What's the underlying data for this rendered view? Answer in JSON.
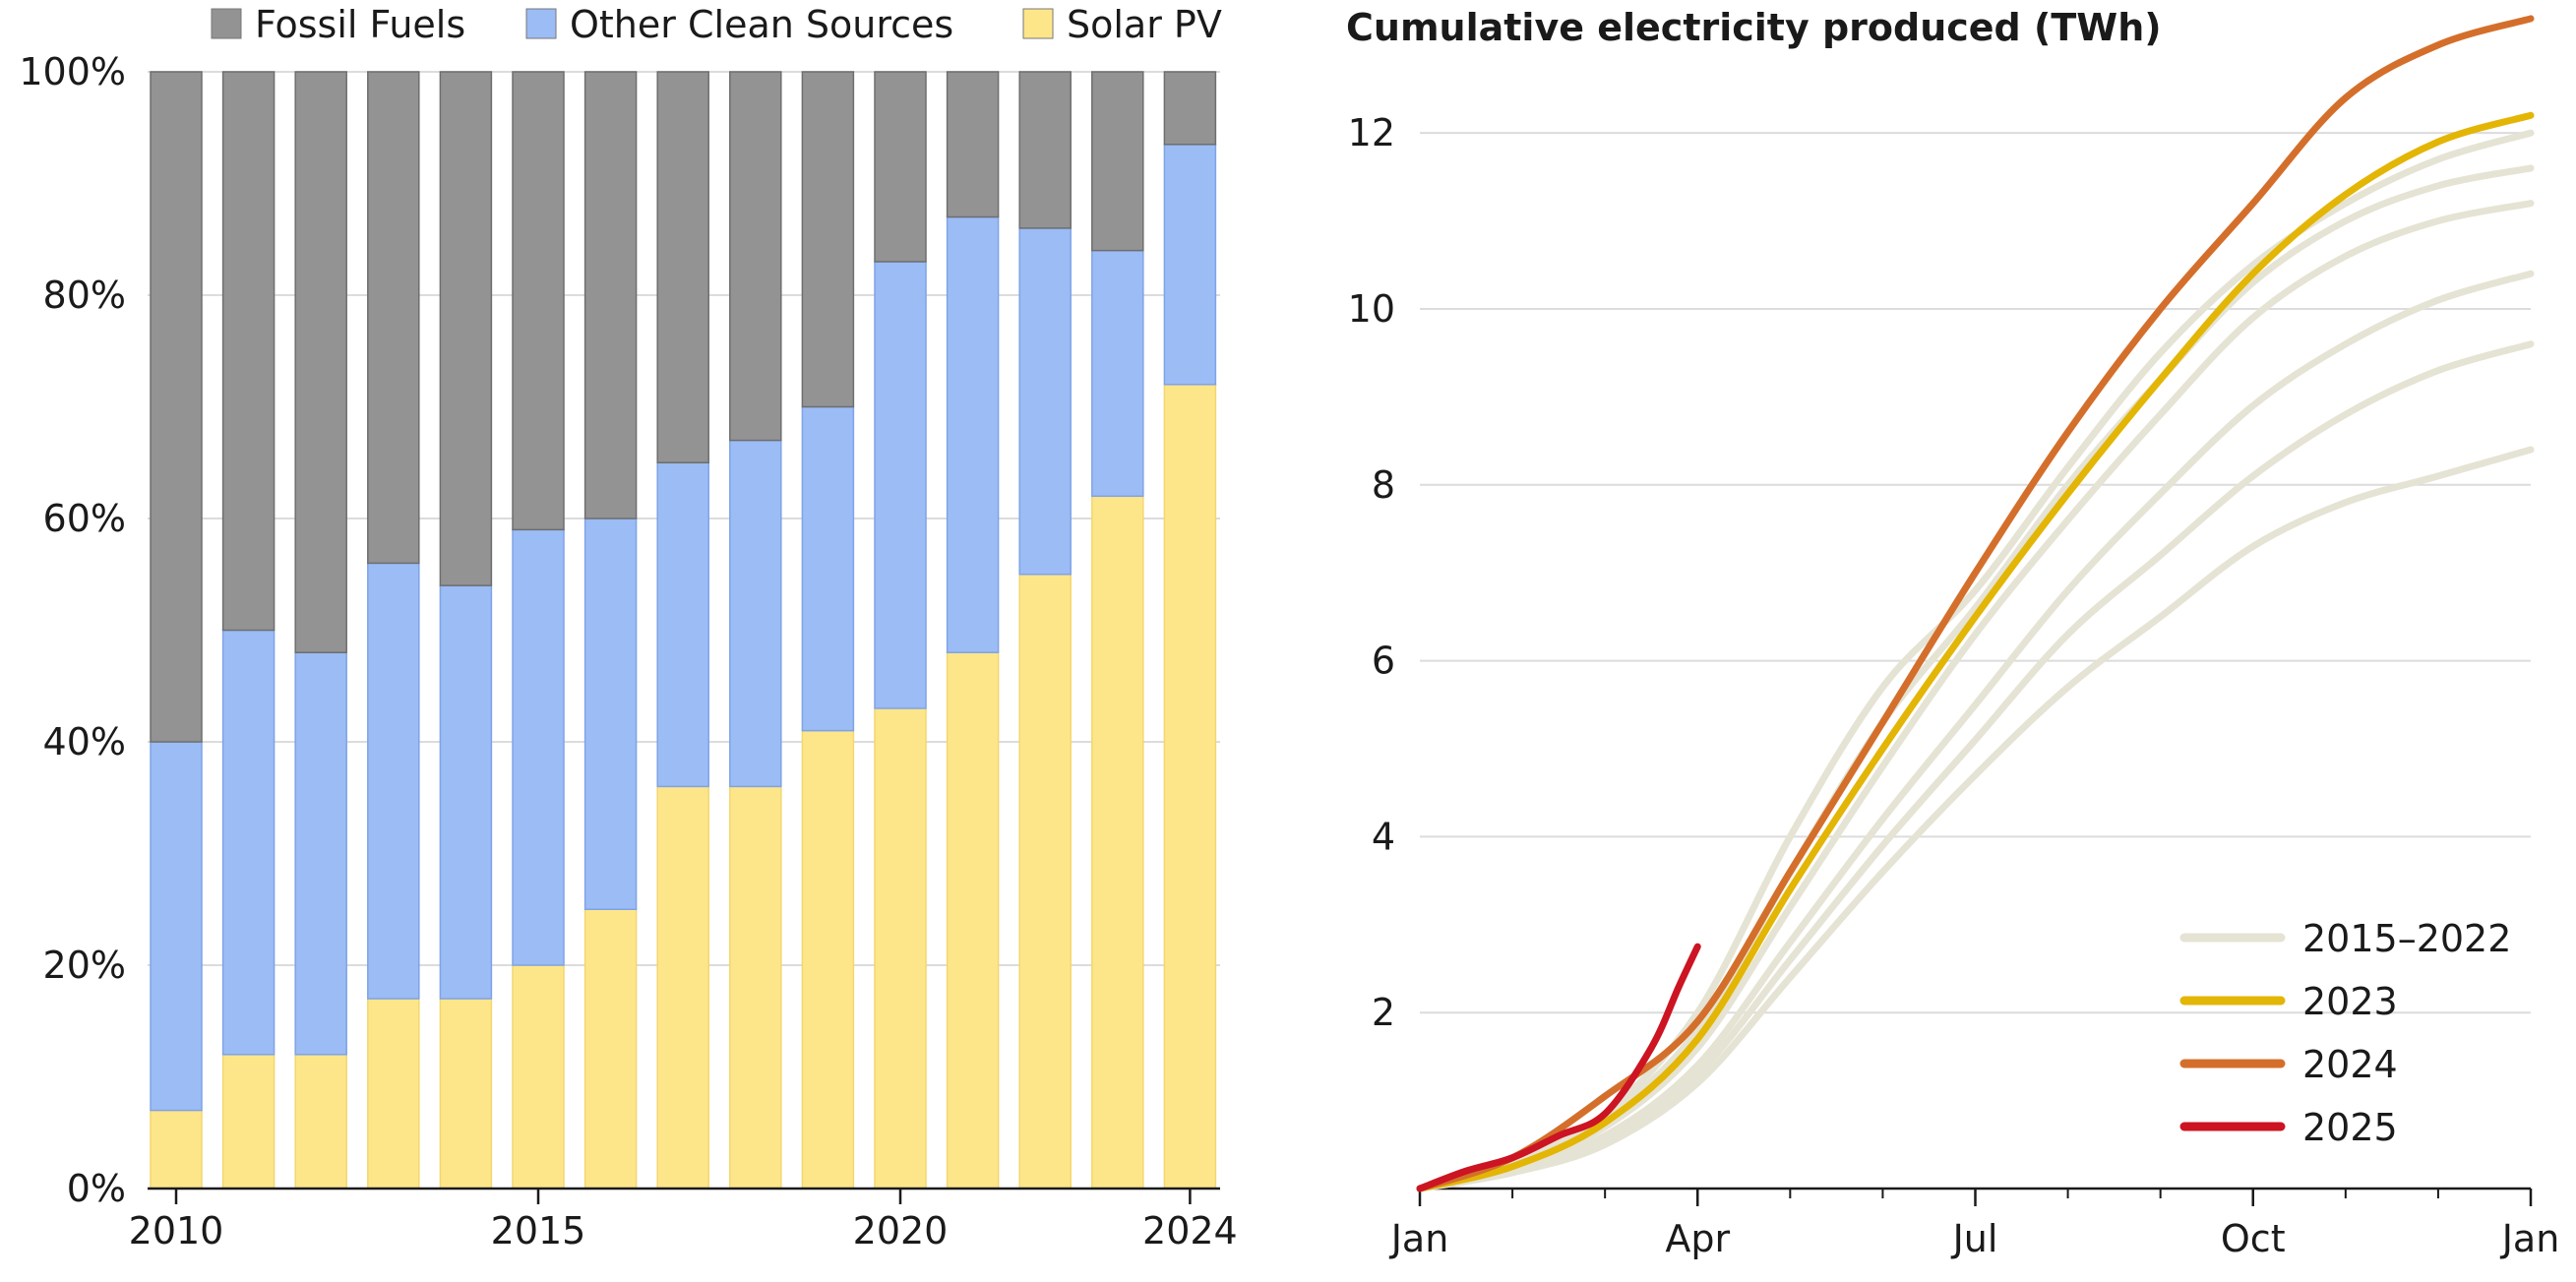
{
  "chart_data": [
    {
      "type": "bar",
      "stacked": true,
      "x": [
        2010,
        2011,
        2012,
        2013,
        2014,
        2015,
        2016,
        2017,
        2018,
        2019,
        2020,
        2021,
        2022,
        2023,
        2024
      ],
      "x_tick_labels": [
        "2010",
        "2015",
        "2020",
        "2024"
      ],
      "x_tick_values": [
        2010,
        2015,
        2020,
        2024
      ],
      "y_tick_labels": [
        "0%",
        "20%",
        "40%",
        "60%",
        "80%",
        "100%"
      ],
      "y_tick_values": [
        0,
        20,
        40,
        60,
        80,
        100
      ],
      "ylim": [
        0,
        100
      ],
      "grid": "horizontal",
      "legend_position": "top",
      "series": [
        {
          "name": "Solar PV",
          "color": "#fde68a",
          "values": [
            7,
            12,
            12,
            17,
            17,
            20,
            25,
            36,
            36,
            41,
            43,
            48,
            55,
            62,
            72
          ]
        },
        {
          "name": "Other Clean Sources",
          "color": "#9bbcf5",
          "values": [
            33,
            38,
            36,
            39,
            37,
            39,
            35,
            29,
            31,
            29,
            40,
            39,
            31,
            22,
            21.5
          ]
        },
        {
          "name": "Fossil Fuels",
          "color": "#939393",
          "values": [
            60,
            50,
            52,
            44,
            46,
            41,
            40,
            35,
            33,
            30,
            17,
            13,
            14,
            16,
            6.5
          ]
        }
      ],
      "legend_order": [
        "Fossil Fuels",
        "Other Clean Sources",
        "Solar PV"
      ]
    },
    {
      "type": "line",
      "title": "Cumulative electricity produced (TWh)",
      "x_tick_labels": [
        "Jan",
        "Apr",
        "Jul",
        "Oct",
        "Jan"
      ],
      "x_tick_values": [
        0,
        3,
        6,
        9,
        12
      ],
      "xlim": [
        0,
        12
      ],
      "y_tick_labels": [
        "2",
        "4",
        "6",
        "8",
        "10",
        "12"
      ],
      "y_tick_values": [
        2,
        4,
        6,
        8,
        10,
        12
      ],
      "ylim": [
        0,
        13.4
      ],
      "grid": "horizontal",
      "legend_position": "bottom-right",
      "series": [
        {
          "name": "2015–2022",
          "color": "#e5e3d3",
          "group": true,
          "x": [
            0,
            1,
            2,
            3,
            4,
            5,
            6,
            7,
            8,
            9,
            10,
            11,
            12
          ],
          "y": [
            0,
            0.18,
            0.5,
            1.2,
            2.4,
            3.6,
            4.7,
            5.7,
            6.5,
            7.3,
            7.8,
            8.1,
            8.4
          ]
        },
        {
          "name": "",
          "color": "#e5e3d3",
          "x": [
            0,
            1,
            2,
            3,
            4,
            5,
            6,
            7,
            8,
            9,
            10,
            11,
            12
          ],
          "y": [
            0,
            0.2,
            0.55,
            1.3,
            2.6,
            3.9,
            5.1,
            6.3,
            7.2,
            8.1,
            8.8,
            9.3,
            9.6
          ]
        },
        {
          "name": "",
          "color": "#e5e3d3",
          "x": [
            0,
            1,
            2,
            3,
            4,
            5,
            6,
            7,
            8,
            9,
            10,
            11,
            12
          ],
          "y": [
            0,
            0.22,
            0.6,
            1.4,
            2.8,
            4.2,
            5.5,
            6.8,
            7.9,
            8.9,
            9.6,
            10.1,
            10.4
          ]
        },
        {
          "name": "",
          "color": "#e5e3d3",
          "x": [
            0,
            1,
            2,
            3,
            4,
            5,
            6,
            7,
            8,
            9,
            10,
            11,
            12
          ],
          "y": [
            0,
            0.25,
            0.7,
            1.6,
            3.2,
            4.8,
            6.3,
            7.6,
            8.8,
            9.9,
            10.6,
            11.0,
            11.2
          ]
        },
        {
          "name": "",
          "color": "#e5e3d3",
          "x": [
            0,
            1,
            2,
            3,
            4,
            5,
            6,
            7,
            8,
            9,
            10,
            11,
            12
          ],
          "y": [
            0,
            0.28,
            0.8,
            1.8,
            3.6,
            5.3,
            6.6,
            8.0,
            9.2,
            10.3,
            11.0,
            11.4,
            11.6
          ]
        },
        {
          "name": "",
          "color": "#e5e3d3",
          "x": [
            0,
            1,
            2,
            3,
            4,
            5,
            6,
            7,
            8,
            9,
            10,
            11,
            12
          ],
          "y": [
            0,
            0.3,
            0.85,
            2.0,
            4.0,
            5.7,
            6.8,
            8.2,
            9.5,
            10.5,
            11.2,
            11.7,
            12.0
          ]
        },
        {
          "name": "2023",
          "color": "#e3b505",
          "x": [
            0,
            1,
            2,
            3,
            4,
            5,
            6,
            7,
            8,
            9,
            10,
            11,
            12
          ],
          "y": [
            0,
            0.25,
            0.75,
            1.7,
            3.4,
            5.0,
            6.5,
            7.9,
            9.2,
            10.4,
            11.3,
            11.9,
            12.2
          ]
        },
        {
          "name": "2024",
          "color": "#d46f2b",
          "x": [
            0,
            1,
            2,
            3,
            4,
            5,
            6,
            7,
            8,
            9,
            10,
            11,
            12
          ],
          "y": [
            0,
            0.35,
            1.05,
            1.9,
            3.6,
            5.3,
            7.0,
            8.6,
            10.0,
            11.2,
            12.4,
            13.0,
            13.3
          ]
        },
        {
          "name": "2025",
          "color": "#cc1422",
          "x": [
            0,
            0.5,
            1,
            1.5,
            2,
            2.5,
            2.8,
            3
          ],
          "y": [
            0,
            0.2,
            0.35,
            0.6,
            0.85,
            1.6,
            2.3,
            2.75
          ]
        }
      ]
    }
  ]
}
